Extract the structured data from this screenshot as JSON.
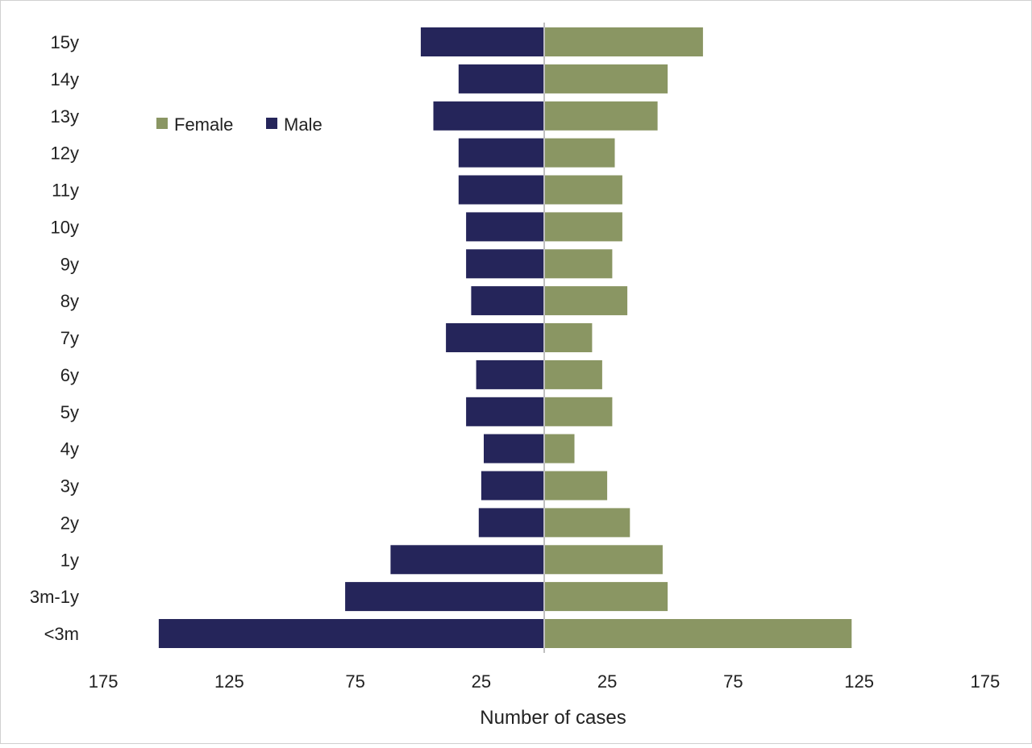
{
  "chart_data": {
    "type": "bar",
    "orientation": "horizontal-diverging",
    "xlabel": "Number of cases",
    "categories": [
      "<3m",
      "3m-1y",
      "1y",
      "2y",
      "3y",
      "4y",
      "5y",
      "6y",
      "7y",
      "8y",
      "9y",
      "10y",
      "11y",
      "12y",
      "13y",
      "14y",
      "15y"
    ],
    "series": [
      {
        "name": "Male",
        "side": "left",
        "color": "#25255a",
        "values": [
          153,
          79,
          61,
          26,
          25,
          24,
          31,
          27,
          39,
          29,
          31,
          31,
          34,
          34,
          44,
          34,
          49
        ]
      },
      {
        "name": "Female",
        "side": "right",
        "color": "#8a9663",
        "values": [
          122,
          49,
          47,
          34,
          25,
          12,
          27,
          23,
          19,
          33,
          27,
          31,
          31,
          28,
          45,
          49,
          63
        ]
      }
    ],
    "xlim": [
      -175,
      175
    ],
    "xticks": [
      -175,
      -125,
      -75,
      -25,
      25,
      75,
      125,
      175
    ],
    "xtick_labels": [
      "175",
      "125",
      "75",
      "25",
      "25",
      "75",
      "125",
      "175"
    ],
    "legend": {
      "placement": "top-left",
      "order": [
        "Female",
        "Male"
      ]
    },
    "grid": false
  }
}
